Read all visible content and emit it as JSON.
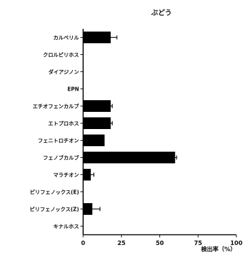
{
  "chart_data": {
    "type": "bar",
    "orientation": "horizontal",
    "title": "ぶどう",
    "xlabel": "検出率（%）",
    "ylabel": "",
    "xlim": [
      0,
      100
    ],
    "xticks": [
      0,
      25,
      50,
      75,
      100
    ],
    "grid": false,
    "legend": "none",
    "categories": [
      "カルベリル",
      "クロルピリホス",
      "ダイアジノン",
      "EPN",
      "エチオフェンカルブ",
      "エトプロホス",
      "フェニトロチオン",
      "フェノブカルブ",
      "マラチオン",
      "ピリフェノックス(E)",
      "ピリフェノックス(Z)",
      "キナルホス"
    ],
    "values": [
      18,
      0,
      0,
      0,
      18,
      18,
      14,
      60,
      5,
      0,
      6,
      0
    ],
    "errors": [
      4,
      0,
      0,
      0,
      1,
      1,
      0,
      1,
      2,
      0,
      5,
      0
    ],
    "bar_color": "#000000"
  }
}
